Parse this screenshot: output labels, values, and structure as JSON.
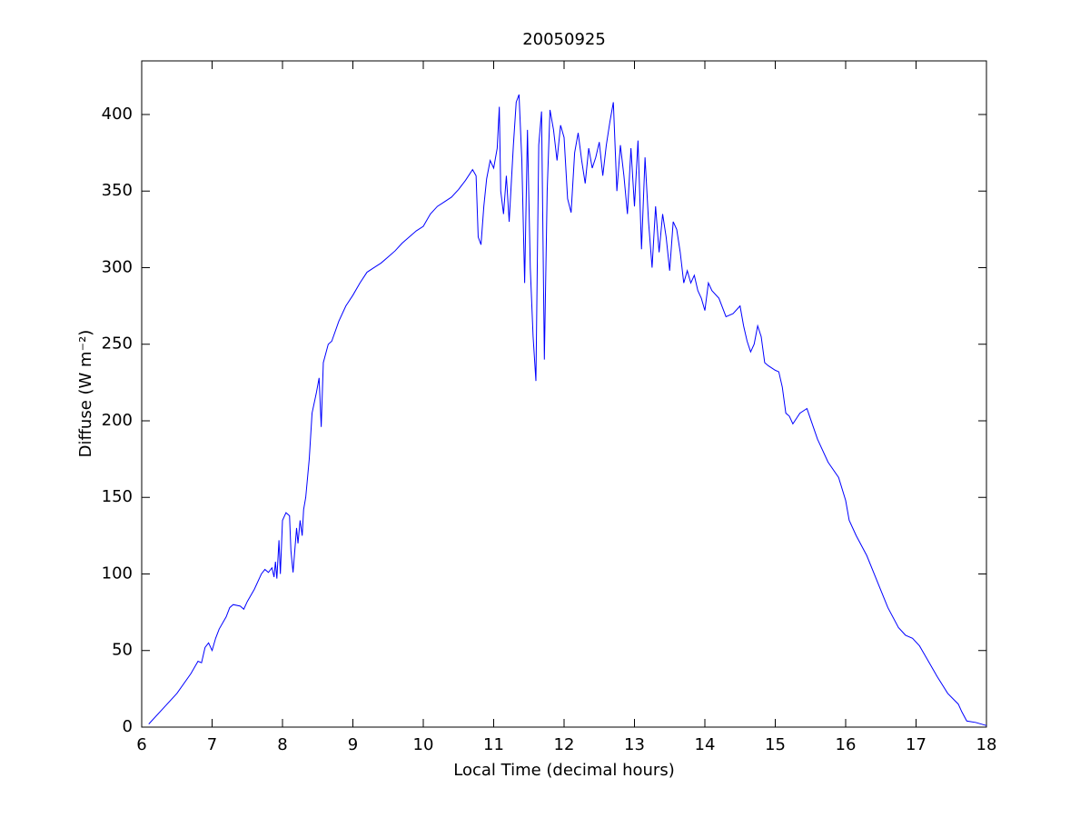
{
  "chart_data": {
    "type": "line",
    "title": "20050925",
    "xlabel": "Local Time (decimal hours)",
    "ylabel": "Diffuse (W m⁻²)",
    "color": "#0000ff",
    "x": [
      6.1,
      6.3,
      6.5,
      6.7,
      6.8,
      6.85,
      6.9,
      6.95,
      7.0,
      7.05,
      7.1,
      7.2,
      7.25,
      7.3,
      7.4,
      7.45,
      7.5,
      7.6,
      7.7,
      7.75,
      7.8,
      7.85,
      7.88,
      7.9,
      7.92,
      7.95,
      7.97,
      8.0,
      8.05,
      8.1,
      8.12,
      8.15,
      8.2,
      8.22,
      8.25,
      8.28,
      8.3,
      8.33,
      8.38,
      8.42,
      8.48,
      8.52,
      8.55,
      8.58,
      8.65,
      8.7,
      8.8,
      8.9,
      9.0,
      9.1,
      9.2,
      9.3,
      9.4,
      9.5,
      9.6,
      9.7,
      9.8,
      9.9,
      10.0,
      10.1,
      10.2,
      10.3,
      10.4,
      10.5,
      10.6,
      10.7,
      10.75,
      10.78,
      10.82,
      10.86,
      10.9,
      10.95,
      11.0,
      11.05,
      11.08,
      11.1,
      11.14,
      11.18,
      11.22,
      11.28,
      11.32,
      11.36,
      11.4,
      11.44,
      11.48,
      11.52,
      11.56,
      11.6,
      11.64,
      11.68,
      11.72,
      11.76,
      11.8,
      11.85,
      11.9,
      11.95,
      12.0,
      12.05,
      12.1,
      12.15,
      12.2,
      12.25,
      12.3,
      12.35,
      12.4,
      12.45,
      12.5,
      12.55,
      12.6,
      12.65,
      12.7,
      12.75,
      12.8,
      12.85,
      12.9,
      12.95,
      13.0,
      13.05,
      13.1,
      13.15,
      13.2,
      13.25,
      13.3,
      13.35,
      13.4,
      13.45,
      13.5,
      13.55,
      13.6,
      13.65,
      13.7,
      13.75,
      13.8,
      13.85,
      13.9,
      13.95,
      14.0,
      14.05,
      14.1,
      14.2,
      14.3,
      14.4,
      14.5,
      14.55,
      14.6,
      14.65,
      14.7,
      14.75,
      14.8,
      14.85,
      14.9,
      15.0,
      15.05,
      15.1,
      15.15,
      15.2,
      15.25,
      15.35,
      15.45,
      15.6,
      15.75,
      15.9,
      16.0,
      16.05,
      16.15,
      16.3,
      16.45,
      16.6,
      16.75,
      16.85,
      16.95,
      17.05,
      17.15,
      17.3,
      17.45,
      17.6,
      17.65,
      17.72,
      17.85,
      18.0
    ],
    "values": [
      2,
      12,
      22,
      35,
      43,
      42,
      52,
      55,
      50,
      58,
      64,
      72,
      78,
      80,
      79,
      77,
      82,
      90,
      100,
      103,
      101,
      104,
      98,
      108,
      97,
      122,
      100,
      135,
      140,
      138,
      115,
      101,
      130,
      120,
      135,
      125,
      142,
      150,
      175,
      205,
      218,
      228,
      196,
      238,
      250,
      252,
      265,
      275,
      282,
      290,
      297,
      300,
      303,
      307,
      311,
      316,
      320,
      324,
      327,
      335,
      340,
      343,
      346,
      351,
      357,
      364,
      360,
      320,
      315,
      340,
      358,
      370,
      365,
      378,
      405,
      350,
      335,
      360,
      330,
      380,
      408,
      413,
      370,
      290,
      390,
      300,
      255,
      226,
      380,
      402,
      240,
      350,
      403,
      390,
      370,
      393,
      385,
      345,
      336,
      375,
      388,
      370,
      355,
      378,
      365,
      372,
      382,
      360,
      380,
      395,
      408,
      350,
      380,
      360,
      335,
      378,
      340,
      383,
      312,
      372,
      330,
      300,
      340,
      310,
      335,
      320,
      298,
      330,
      325,
      310,
      290,
      298,
      290,
      295,
      285,
      280,
      272,
      290,
      285,
      280,
      268,
      270,
      275,
      262,
      252,
      245,
      250,
      262,
      255,
      238,
      236,
      233,
      232,
      222,
      205,
      203,
      198,
      205,
      208,
      188,
      173,
      163,
      148,
      135,
      125,
      112,
      95,
      78,
      65,
      60,
      58,
      53,
      45,
      33,
      22,
      15,
      10,
      4,
      3,
      1
    ],
    "xlim": [
      6,
      18
    ],
    "ylim": [
      0,
      435
    ],
    "xticks": [
      6,
      7,
      8,
      9,
      10,
      11,
      12,
      13,
      14,
      15,
      16,
      17,
      18
    ],
    "yticks": [
      0,
      50,
      100,
      150,
      200,
      250,
      300,
      350,
      400
    ]
  }
}
